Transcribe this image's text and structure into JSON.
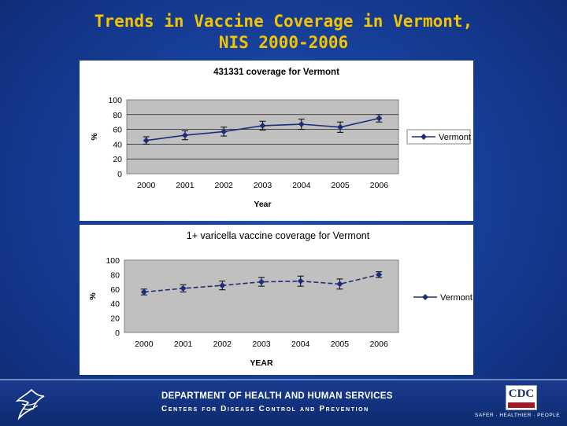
{
  "slide": {
    "title_line1": "Trends in Vaccine Coverage in Vermont,",
    "title_line2": "NIS 2000-2006"
  },
  "chart_data": [
    {
      "type": "line",
      "title": "431331 coverage  for Vermont",
      "xlabel": "Year",
      "ylabel": "%",
      "categories": [
        "2000",
        "2001",
        "2002",
        "2003",
        "2004",
        "2005",
        "2006"
      ],
      "ylim": [
        0,
        100
      ],
      "yticks": [
        "0",
        "20",
        "40",
        "60",
        "80",
        "100"
      ],
      "grid": true,
      "legend_position": "right",
      "series": [
        {
          "name": "Vermont",
          "values": [
            45,
            52,
            57,
            65,
            67,
            63,
            75
          ],
          "error": [
            5,
            6,
            6,
            6,
            7,
            7,
            5
          ],
          "color": "#1e2d7a"
        }
      ]
    },
    {
      "type": "line",
      "title": "1+ varicella vaccine coverage for Vermont",
      "xlabel": "YEAR",
      "ylabel": "%",
      "categories": [
        "2000",
        "2001",
        "2002",
        "2003",
        "2004",
        "2005",
        "2006"
      ],
      "ylim": [
        0,
        100
      ],
      "yticks": [
        "0",
        "20",
        "40",
        "60",
        "80",
        "100"
      ],
      "grid": false,
      "legend_position": "right",
      "series": [
        {
          "name": "Vermont",
          "values": [
            56,
            61,
            65,
            70,
            71,
            67,
            80
          ],
          "error": [
            4,
            5,
            6,
            6,
            7,
            7,
            4
          ],
          "color": "#1e2d7a"
        }
      ]
    }
  ],
  "footer": {
    "department": "DEPARTMENT OF HEALTH AND HUMAN SERVICES",
    "centers": "Centers for Disease Control and Prevention",
    "cdc_logo": "CDC",
    "tagline": "SAFER · HEALTHIER · PEOPLE",
    "hhs_logo_icon": "hhs-eagle-icon"
  }
}
